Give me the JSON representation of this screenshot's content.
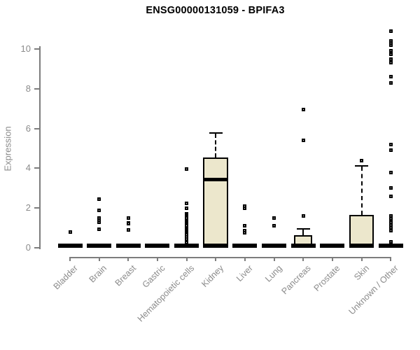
{
  "chart_data": {
    "type": "boxplot",
    "title": "ENSG00000131059 - BPIFA3",
    "ylabel": "Expression",
    "xlabel": "",
    "yticks": [
      0,
      2,
      4,
      6,
      8,
      10
    ],
    "ylim": [
      0,
      11.2
    ],
    "grid": false,
    "legend": "none",
    "categories": [
      "Bladder",
      "Brain",
      "Breast",
      "Gastric",
      "Hematopoietic cells",
      "Kidney",
      "Liver",
      "Lung",
      "Pancreas",
      "Prostate",
      "Skin",
      "Unknown / Other"
    ],
    "boxes": [
      {
        "category": "Bladder",
        "q1": 0,
        "median": 0,
        "q3": 0,
        "whisker_low": 0,
        "whisker_high": 0,
        "outliers": [
          0.8
        ]
      },
      {
        "category": "Brain",
        "q1": 0,
        "median": 0,
        "q3": 0,
        "whisker_low": 0,
        "whisker_high": 0,
        "outliers": [
          2.45,
          1.9,
          1.5,
          1.4,
          1.3,
          0.95
        ]
      },
      {
        "category": "Breast",
        "q1": 0,
        "median": 0,
        "q3": 0,
        "whisker_low": 0,
        "whisker_high": 0,
        "outliers": [
          1.5,
          1.25,
          1.2,
          0.9
        ]
      },
      {
        "category": "Gastric",
        "q1": 0,
        "median": 0,
        "q3": 0,
        "whisker_low": 0,
        "whisker_high": 0,
        "outliers": []
      },
      {
        "category": "Hematopoietic cells",
        "q1": 0,
        "median": 0,
        "q3": 0,
        "whisker_low": 0,
        "whisker_high": 0,
        "outliers": [
          3.95,
          2.25,
          2.0,
          1.7,
          1.62,
          1.55,
          1.48,
          1.4,
          1.32,
          1.25,
          1.18,
          1.1,
          1.02,
          0.95,
          0.88,
          0.8,
          0.72,
          0.65,
          0.55,
          0.45,
          0.35,
          0.27
        ]
      },
      {
        "category": "Kidney",
        "q1": 0,
        "median": 3.45,
        "q3": 4.55,
        "whisker_low": 0,
        "whisker_high": 5.75,
        "outliers": []
      },
      {
        "category": "Liver",
        "q1": 0,
        "median": 0,
        "q3": 0,
        "whisker_low": 0,
        "whisker_high": 0,
        "outliers": [
          2.1,
          2.0,
          1.1,
          0.85,
          0.75
        ]
      },
      {
        "category": "Lung",
        "q1": 0,
        "median": 0,
        "q3": 0,
        "whisker_low": 0,
        "whisker_high": 0,
        "outliers": [
          1.5,
          1.1
        ]
      },
      {
        "category": "Pancreas",
        "q1": 0,
        "median": 0,
        "q3": 0.65,
        "whisker_low": 0,
        "whisker_high": 0.9,
        "outliers": [
          6.95,
          5.4,
          1.6
        ]
      },
      {
        "category": "Prostate",
        "q1": 0,
        "median": 0,
        "q3": 0,
        "whisker_low": 0,
        "whisker_high": 0,
        "outliers": []
      },
      {
        "category": "Skin",
        "q1": 0,
        "median": 0,
        "q3": 1.65,
        "whisker_low": 0,
        "whisker_high": 4.1,
        "outliers": [
          4.4
        ]
      },
      {
        "category": "Unknown / Other",
        "q1": 0,
        "median": 0,
        "q3": 0,
        "whisker_low": 0,
        "whisker_high": 0,
        "outliers": [
          10.9,
          10.4,
          10.3,
          10.2,
          9.9,
          9.75,
          9.5,
          9.4,
          9.3,
          8.6,
          8.3,
          5.2,
          4.9,
          3.8,
          3.0,
          2.6,
          1.6,
          1.45,
          1.3,
          1.15,
          1.0,
          0.85,
          0.3
        ]
      }
    ],
    "colors": {
      "box_fill": "#ece7cc",
      "box_border": "#000000",
      "median": "#000000",
      "outlier": "#000000",
      "axis": "#7d7d7d",
      "axis_text": "#8b8b8b",
      "title_text": "#000000"
    }
  }
}
